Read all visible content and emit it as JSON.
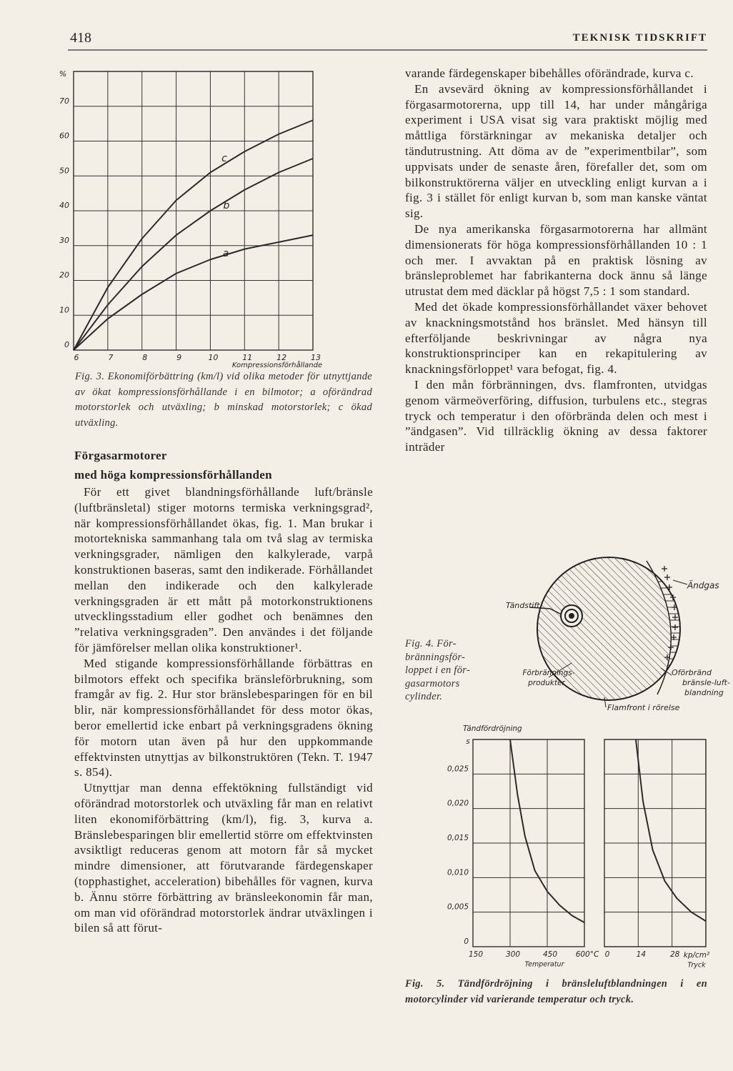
{
  "header": {
    "page_number": "418",
    "journal": "TEKNISK TIDSKRIFT"
  },
  "chart_data": [
    {
      "type": "line",
      "y_unit": "%",
      "x_label": "Kompressionsförhållande",
      "x": [
        6,
        7,
        8,
        9,
        10,
        11,
        12,
        13
      ],
      "series": [
        {
          "name": "a",
          "color": "#2b2b2b",
          "values": [
            0,
            9,
            16,
            22,
            26,
            29,
            31,
            33
          ]
        },
        {
          "name": "b",
          "color": "#2b2b2b",
          "values": [
            0,
            13,
            24,
            33,
            40,
            46,
            51,
            55
          ]
        },
        {
          "name": "c",
          "color": "#2b2b2b",
          "values": [
            0,
            18,
            32,
            43,
            51,
            57,
            62,
            66
          ]
        }
      ],
      "xlim": [
        6,
        13
      ],
      "xticks": [
        6,
        7,
        8,
        9,
        10,
        11,
        12,
        13
      ],
      "ylim": [
        0,
        80
      ],
      "yticks": [
        0,
        10,
        20,
        30,
        40,
        50,
        60,
        70
      ],
      "grid": true
    },
    {
      "type": "line",
      "y_label": "Tändfördröjning",
      "y_unit": "s",
      "x_label": "Temperatur",
      "x": [
        300,
        330,
        360,
        400,
        450,
        500,
        550,
        600
      ],
      "values": [
        0.03,
        0.022,
        0.016,
        0.011,
        0.008,
        0.006,
        0.0045,
        0.0035
      ],
      "color": "#2b2b2b",
      "xlim": [
        150,
        600
      ],
      "xticks": [
        150,
        300,
        450,
        {
          "value": 600,
          "label": "600°C"
        }
      ],
      "ylim": [
        0,
        0.03
      ],
      "yticks": [
        0,
        {
          "value": 0.005,
          "label": "0,005"
        },
        {
          "value": 0.01,
          "label": "0,010"
        },
        {
          "value": 0.015,
          "label": "0,015"
        },
        {
          "value": 0.02,
          "label": "0,020"
        },
        {
          "value": 0.025,
          "label": "0,025"
        }
      ],
      "grid": true
    },
    {
      "type": "line",
      "x_label": "Tryck",
      "x_unit": "kp/cm²",
      "x": [
        13,
        16,
        20,
        25,
        30,
        36,
        42
      ],
      "values": [
        0.03,
        0.021,
        0.014,
        0.0095,
        0.007,
        0.005,
        0.0037
      ],
      "color": "#2b2b2b",
      "xlim": [
        0,
        42
      ],
      "xticks": [
        0,
        14,
        28
      ],
      "ylim": [
        0,
        0.03
      ],
      "ygrid": [
        0.005,
        0.01,
        0.015,
        0.02,
        0.025
      ],
      "grid": true
    }
  ],
  "figure3_caption": "Fig. 3. Ekonomiförbättring (km/l) vid olika metoder för utnyttjande av ökat kompressionsförhållande i en bilmotor; a oförändrad motorstorlek och utväxling; b minskad motorstorlek; c ökad utväxling.",
  "figure4": {
    "labels": {
      "spark_plug": "Tändstift",
      "end_gas": "Ändgas",
      "products": [
        "Förbrännings-",
        "produkter"
      ],
      "unburned": [
        "Oförbränd",
        "bränsle-luft-",
        "blandning"
      ],
      "flame_front": "Flamfront i rörelse"
    },
    "caption_lines": [
      "Fig. 4. För-",
      "bränningsför-",
      "loppet i en för-",
      "gasarmotors",
      "cylinder."
    ]
  },
  "figure5_caption": "Fig. 5. Tändfördröjning i bränsleluftblandningen i en motorcylinder vid varierande temperatur och tryck.",
  "left_column": {
    "heading": [
      "Förgasarmotorer",
      "med höga kompressionsförhållanden"
    ],
    "paragraphs": [
      "För ett givet blandningsförhållande luft/bränsle (luftbränsletal) stiger motorns termiska verkningsgrad², när kompressionsförhållandet ökas, fig. 1. Man brukar i motortekniska sammanhang tala om två slag av termiska verkningsgrader, nämligen den kalkylerade, varpå konstruktionen baseras, samt den indikerade. Förhållandet mellan den indikerade och den kalkylerade verkningsgraden är ett mått på motorkonstruktionens utvecklingsstadium eller godhet och benämnes den ”relativa verkningsgraden”. Den användes i det följande för jämförelser mellan olika konstruktioner¹.",
      "Med stigande kompressionsförhållande förbättras en bilmotors effekt och specifika bränsleförbrukning, som framgår av fig. 2. Hur stor bränslebesparingen för en bil blir, när kompressionsförhållandet för dess motor ökas, beror emellertid icke enbart på verkningsgradens ökning för motorn utan även på hur den uppkommande effektvinsten utnyttjas av bilkonstruktören (Tekn. T. 1947 s. 854).",
      "Utnyttjar man denna effektökning fullständigt vid oförändrad motorstorlek och utväxling får man en relativt liten ekonomiförbättring (km/l), fig. 3, kurva a. Bränslebesparingen blir emellertid större om effektvinsten avsiktligt reduceras genom att motorn får så mycket mindre dimensioner, att förutvarande färdegenskaper (topphastighet, acceleration) bibehålles för vagnen, kurva b. Ännu större förbättring av bränsleekonomin får man, om man vid oförändrad motorstorlek ändrar utväxlingen i bilen så att förut-"
    ]
  },
  "right_column": {
    "paragraphs": [
      "varande färdegenskaper bibehålles oförändrade, kurva c.",
      "En avsevärd ökning av kompressionsförhållandet i förgasarmotorerna, upp till 14, har under mångåriga experiment i USA visat sig vara praktiskt möjlig med måttliga förstärkningar av mekaniska detaljer och tändutrustning. Att döma av de ”experimentbilar”, som uppvisats under de senaste åren, förefaller det, som om bilkonstruktörerna väljer en utveckling enligt kurvan a i fig. 3 i stället för enligt kurvan b, som man kanske väntat sig.",
      "De nya amerikanska förgasarmotorerna har allmänt dimensionerats för höga kompressionsförhållanden 10 : 1 och mer. I avvaktan på en praktisk lösning av bränsleproblemet har fabrikanterna dock ännu så länge utrustat dem med däcklar på högst 7,5 : 1 som standard.",
      "Med det ökade kompressionsförhållandet växer behovet av knackningsmotstånd hos bränslet. Med hänsyn till efterföljande beskrivningar av några nya konstruktionsprinciper kan en rekapitulering av knackningsförloppet¹ vara befogat, fig. 4.",
      "I den mån förbränningen, dvs. flamfronten, utvidgas genom värmeöverföring, diffusion, turbulens etc., stegras tryck och temperatur i den oförbrända delen och mest i ”ändgasen”. Vid tillräcklig ökning av dessa faktorer inträder"
    ]
  }
}
